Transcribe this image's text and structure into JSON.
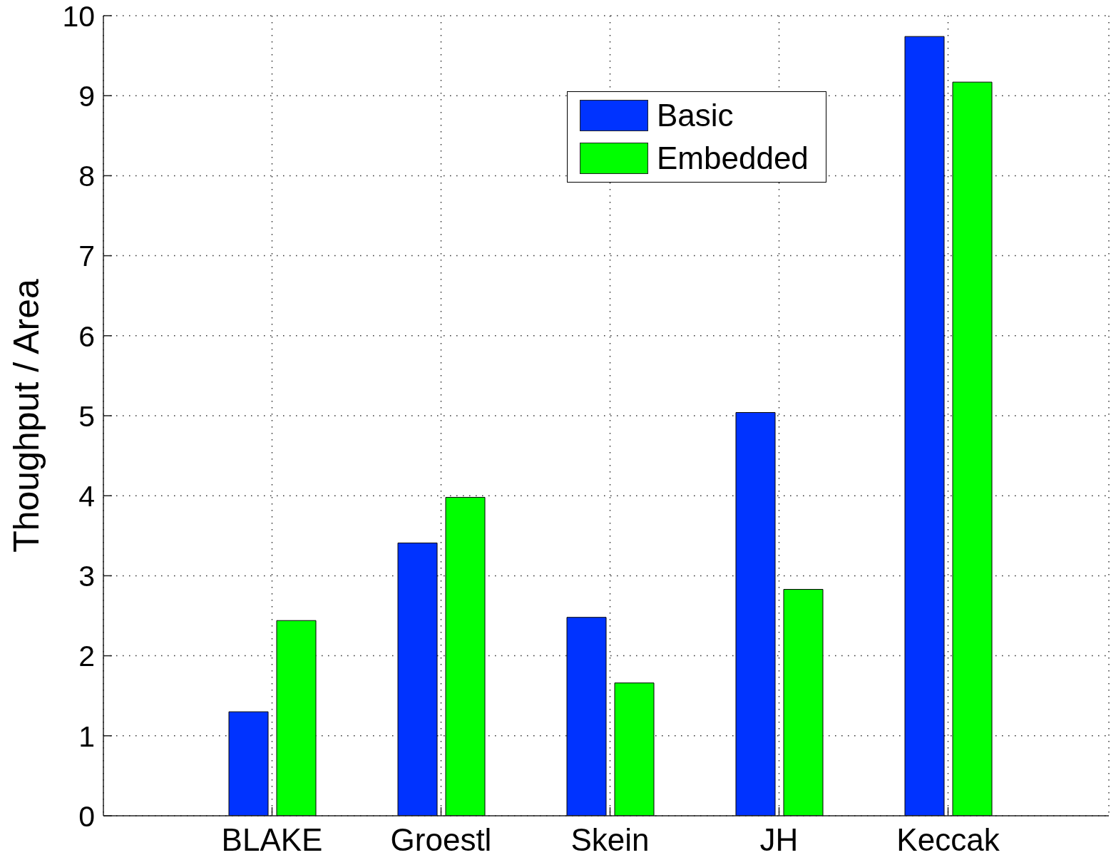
{
  "chart_data": {
    "type": "bar",
    "ylabel": "Thoughput / Area",
    "categories": [
      "BLAKE",
      "Groestl",
      "Skein",
      "JH",
      "Keccak"
    ],
    "series": [
      {
        "name": "Basic",
        "color": "#0033ff",
        "values": [
          1.3,
          3.41,
          2.48,
          5.04,
          9.74
        ]
      },
      {
        "name": "Embedded",
        "color": "#00ff00",
        "values": [
          2.44,
          3.98,
          1.66,
          2.83,
          9.17
        ]
      }
    ],
    "ylim": [
      0,
      10
    ],
    "yticks": [
      0,
      1,
      2,
      3,
      4,
      5,
      6,
      7,
      8,
      9,
      10
    ],
    "grid": true,
    "legend": "top"
  }
}
